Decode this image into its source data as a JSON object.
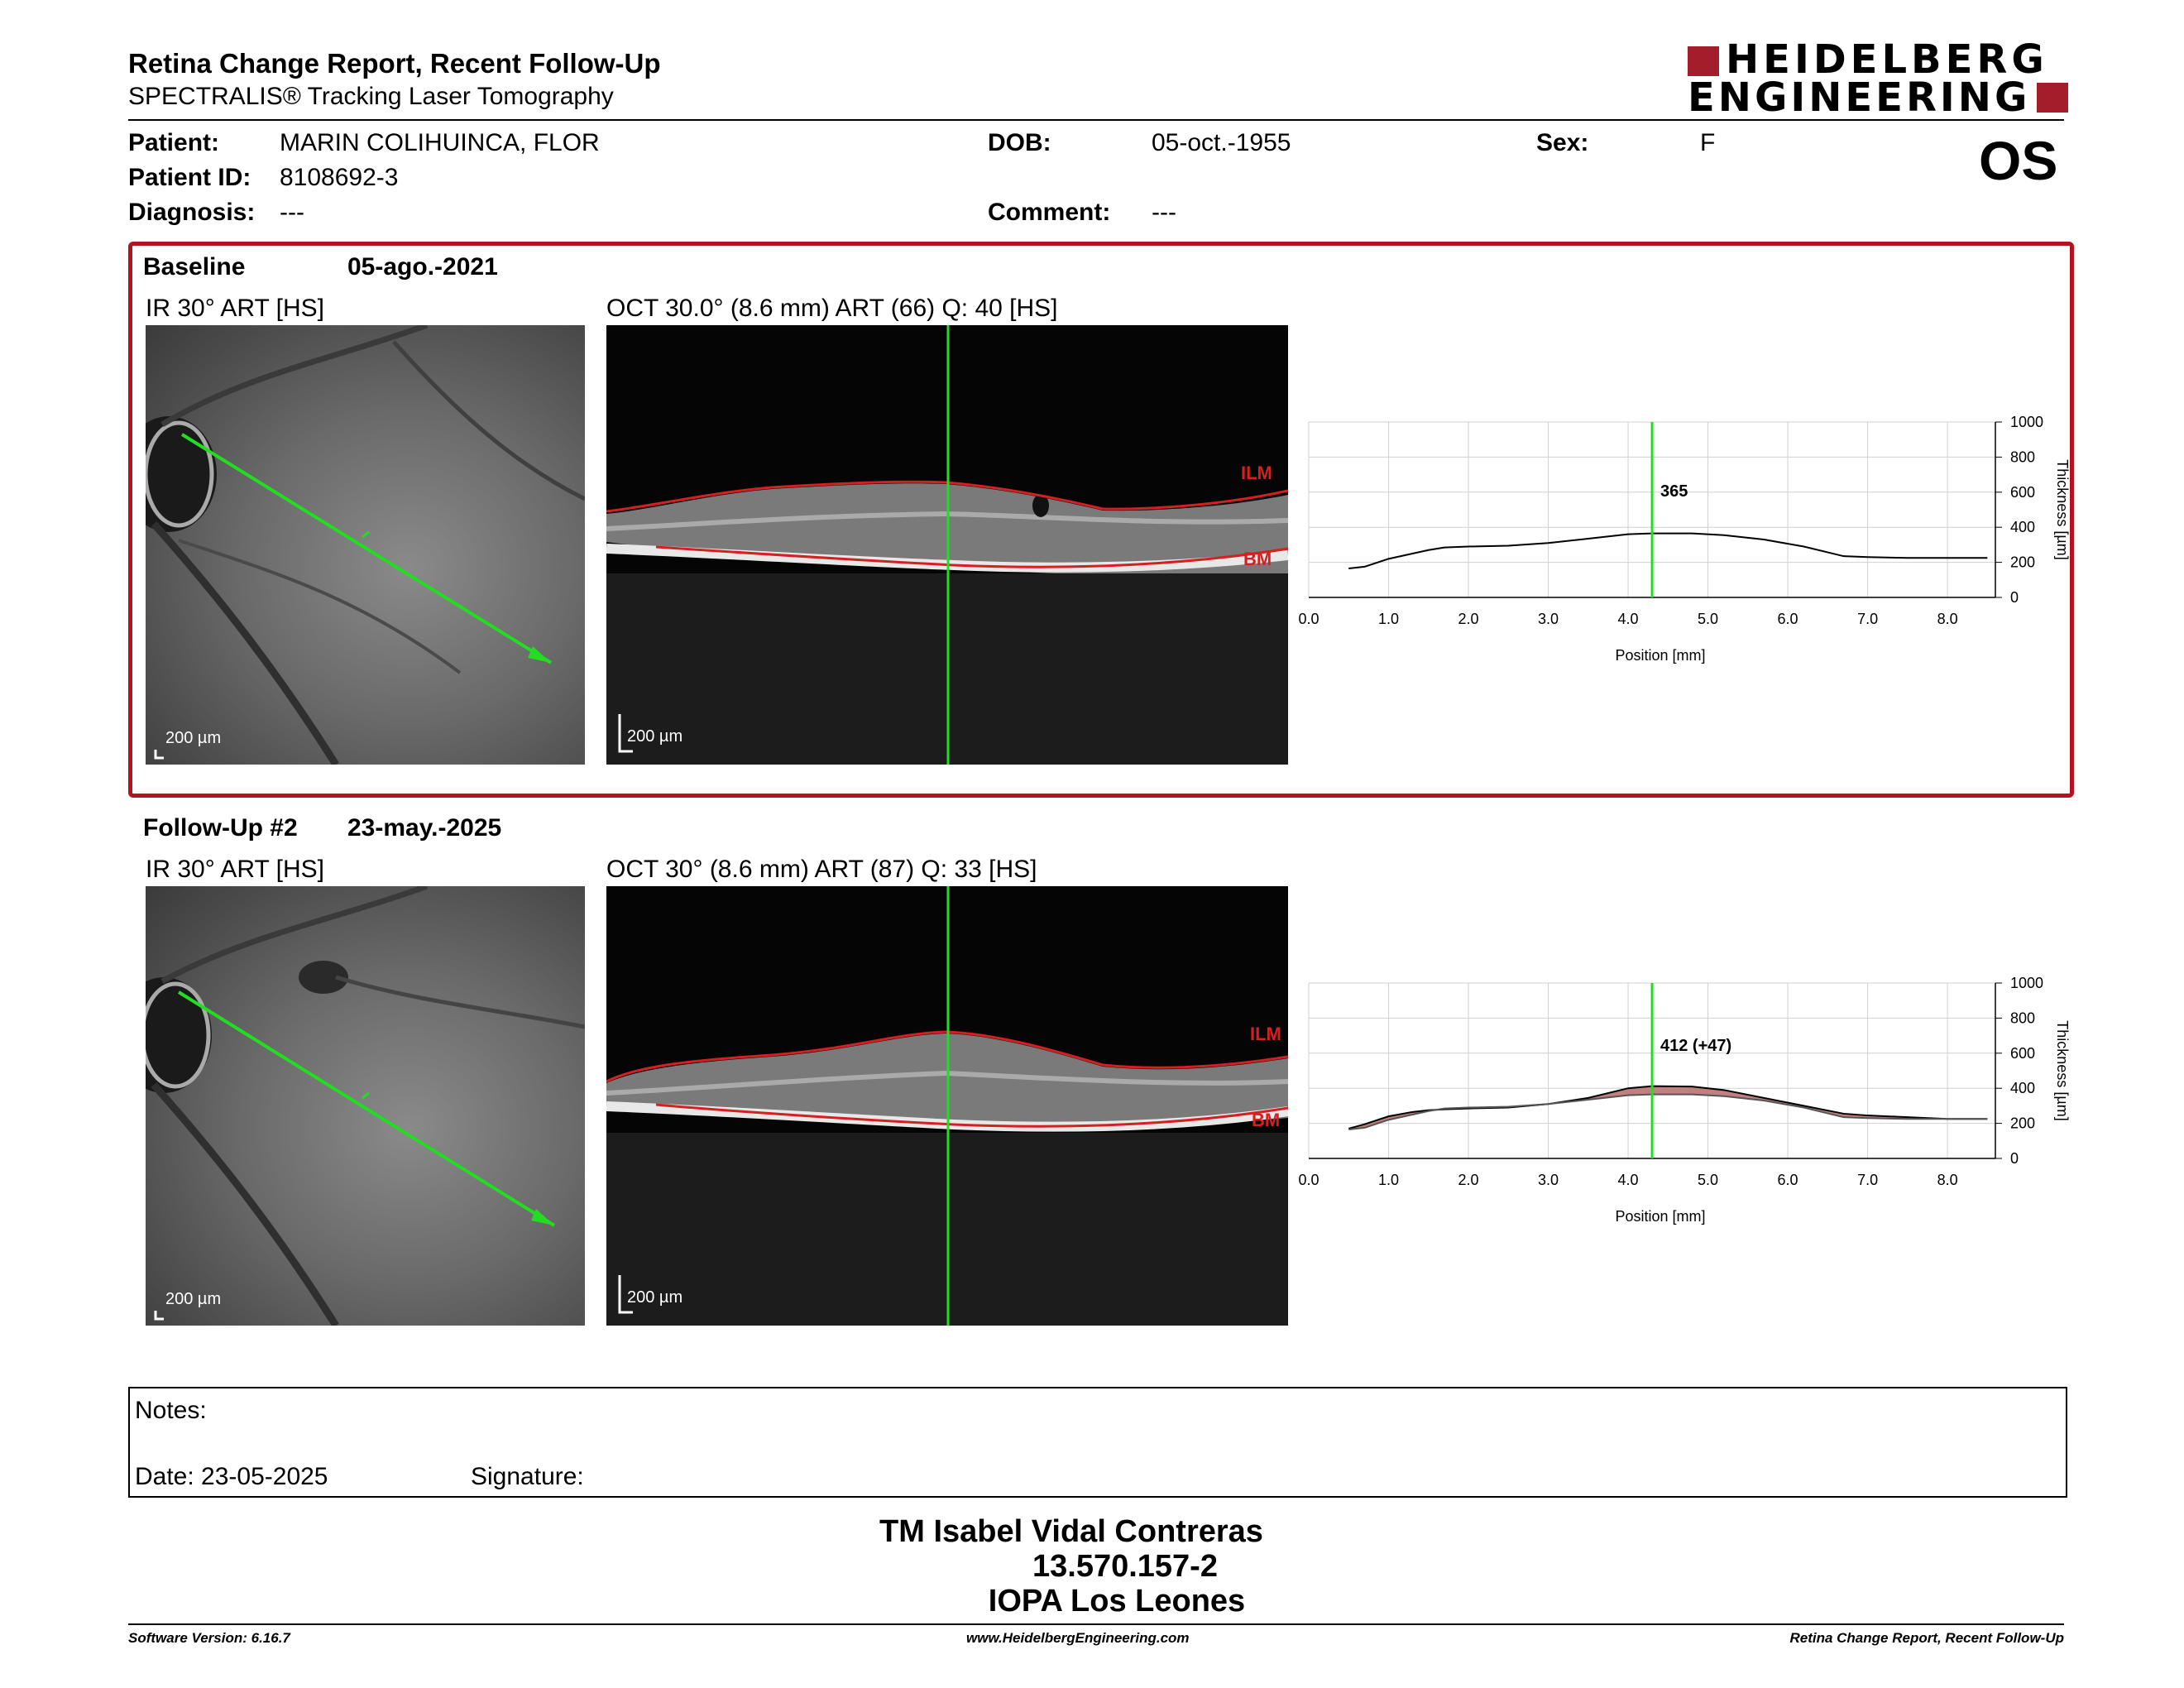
{
  "header": {
    "title": "Retina Change Report, Recent Follow-Up",
    "subtitle": "SPECTRALIS® Tracking Laser Tomography",
    "logo_line1": "HEIDELBERG",
    "logo_line2": "ENGINEERING",
    "eye": "OS"
  },
  "patient": {
    "patient_label": "Patient:",
    "patient_name": "MARIN COLIHUINCA, FLOR",
    "id_label": "Patient ID:",
    "id": "8108692-3",
    "diagnosis_label": "Diagnosis:",
    "diagnosis": "---",
    "dob_label": "DOB:",
    "dob": "05-oct.-1955",
    "comment_label": "Comment:",
    "comment": "---",
    "sex_label": "Sex:",
    "sex": "F"
  },
  "baseline": {
    "label": "Baseline",
    "date": "05-ago.-2021",
    "ir_title": "IR 30° ART [HS]",
    "oct_title": "OCT 30.0° (8.6 mm) ART (66) Q: 40 [HS]",
    "ir_scale": "200 µm",
    "oct_scale": "200 µm",
    "ilm_label": "ILM",
    "bm_label": "BM"
  },
  "followup": {
    "label": "Follow-Up #2",
    "date": "23-may.-2025",
    "ir_title": "IR 30° ART [HS]",
    "oct_title": "OCT 30° (8.6 mm) ART (87) Q: 33 [HS]",
    "ir_scale": "200 µm",
    "oct_scale": "200 µm",
    "ilm_label": "ILM",
    "bm_label": "BM"
  },
  "colors": {
    "frame": "#b3121e",
    "scan_line": "#22dd22",
    "segmentation": "#d42020",
    "logo_red": "#a31d2b",
    "loss_fill": "#c08080"
  },
  "chart_data": [
    {
      "type": "line",
      "xlabel": "Position [mm]",
      "ylabel": "Thickness [µm]",
      "xlim": [
        0,
        8.6
      ],
      "ylim": [
        0,
        1000
      ],
      "x_ticks": [
        "0.0",
        "1.0",
        "2.0",
        "3.0",
        "4.0",
        "5.0",
        "6.0",
        "7.0",
        "8.0"
      ],
      "y_ticks": [
        "0",
        "200",
        "400",
        "600",
        "800",
        "1000"
      ],
      "cursor_x": 4.3,
      "cursor_label": "365",
      "series": [
        {
          "x": [
            0.5,
            0.7,
            1.0,
            1.3,
            1.5,
            1.7,
            2.0,
            2.5,
            3.0,
            3.5,
            4.0,
            4.3,
            4.8,
            5.2,
            5.7,
            6.2,
            6.7,
            7.0,
            7.5,
            8.0,
            8.5
          ],
          "y": [
            165,
            175,
            220,
            250,
            270,
            285,
            290,
            295,
            310,
            335,
            360,
            365,
            365,
            355,
            330,
            290,
            235,
            230,
            225,
            225,
            225
          ]
        }
      ]
    },
    {
      "type": "line",
      "xlabel": "Position [mm]",
      "ylabel": "Thickness [µm]",
      "xlim": [
        0,
        8.6
      ],
      "ylim": [
        0,
        1000
      ],
      "x_ticks": [
        "0.0",
        "1.0",
        "2.0",
        "3.0",
        "4.0",
        "5.0",
        "6.0",
        "7.0",
        "8.0"
      ],
      "y_ticks": [
        "0",
        "200",
        "400",
        "600",
        "800",
        "1000"
      ],
      "cursor_x": 4.3,
      "cursor_label": "412 (+47)",
      "series": [
        {
          "x": [
            0.5,
            0.7,
            1.0,
            1.3,
            1.5,
            1.7,
            2.0,
            2.5,
            3.0,
            3.5,
            4.0,
            4.3,
            4.8,
            5.2,
            5.7,
            6.2,
            6.7,
            7.0,
            7.5,
            8.0,
            8.5
          ],
          "y": [
            170,
            195,
            240,
            265,
            275,
            280,
            285,
            290,
            310,
            345,
            400,
            412,
            410,
            390,
            345,
            300,
            255,
            245,
            235,
            225,
            225
          ]
        },
        {
          "x": [
            0.5,
            0.7,
            1.0,
            1.3,
            1.5,
            1.7,
            2.0,
            2.5,
            3.0,
            3.5,
            4.0,
            4.3,
            4.8,
            5.2,
            5.7,
            6.2,
            6.7,
            7.0,
            7.5,
            8.0,
            8.5
          ],
          "y": [
            165,
            175,
            220,
            250,
            270,
            285,
            290,
            295,
            310,
            335,
            360,
            365,
            365,
            355,
            330,
            290,
            235,
            230,
            225,
            225,
            225
          ]
        }
      ]
    }
  ],
  "notes": {
    "notes_label": "Notes:",
    "date_label": "Date: 23-05-2025",
    "signature_label": "Signature:"
  },
  "signature_block": {
    "name": "TM Isabel Vidal Contreras",
    "id": "13.570.157-2",
    "institution": "IOPA Los Leones"
  },
  "footer": {
    "software": "Software Version: 6.16.7",
    "website": "www.HeidelbergEngineering.com",
    "report": "Retina Change Report, Recent Follow-Up"
  }
}
